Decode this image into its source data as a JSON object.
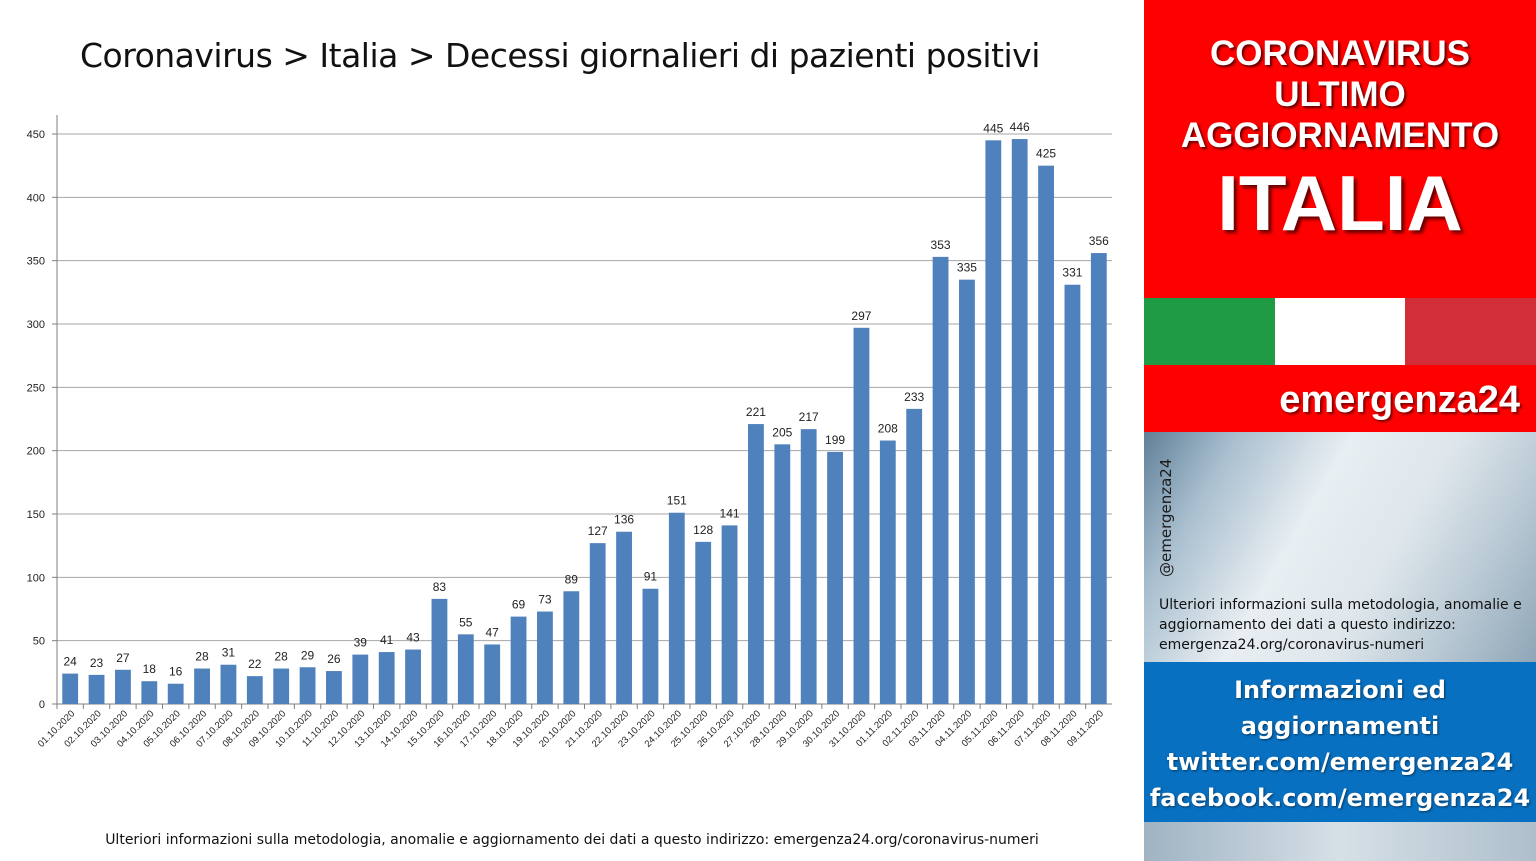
{
  "title": "Coronavirus > Italia > Decessi giornalieri di pazienti positivi",
  "footnote": "Ulteriori informazioni sulla metodologia, anomalie e aggiornamento dei dati a questo indirizzo: emergenza24.org/coronavirus-numeri",
  "panel": {
    "header_lines": [
      "CORONAVIRUS",
      "ULTIMO",
      "AGGIORNAMENTO"
    ],
    "country": "ITALIA",
    "brand": "emergenza24",
    "handle": "@emergenza24",
    "note": "Ulteriori informazioni sulla metodologia, anomalie e aggiornamento dei dati a questo indirizzo: emergenza24.org/coronavirus-numeri",
    "info_lines": [
      "Informazioni ed",
      "aggiornamenti",
      "twitter.com/emergenza24",
      "facebook.com/emergenza24"
    ],
    "colors": {
      "red": "#fe0000",
      "blue": "#0870c1",
      "flag_green": "#1f9a45",
      "flag_white": "#ffffff",
      "flag_red": "#d22e38"
    }
  },
  "chart_data": {
    "type": "bar",
    "title": "Coronavirus > Italia > Decessi giornalieri di pazienti positivi",
    "xlabel": "",
    "ylabel": "",
    "ylim": [
      0,
      450
    ],
    "yticks": [
      0,
      50,
      100,
      150,
      200,
      250,
      300,
      350,
      400,
      450
    ],
    "grid": true,
    "bar_color": "#4f81bd",
    "categories": [
      "01.10.2020",
      "02.10.2020",
      "03.10.2020",
      "04.10.2020",
      "05.10.2020",
      "06.10.2020",
      "07.10.2020",
      "08.10.2020",
      "09.10.2020",
      "10.10.2020",
      "11.10.2020",
      "12.10.2020",
      "13.10.2020",
      "14.10.2020",
      "15.10.2020",
      "16.10.2020",
      "17.10.2020",
      "18.10.2020",
      "19.10.2020",
      "20.10.2020",
      "21.10.2020",
      "22.10.2020",
      "23.10.2020",
      "24.10.2020",
      "25.10.2020",
      "26.10.2020",
      "27.10.2020",
      "28.10.2020",
      "29.10.2020",
      "30.10.2020",
      "31.10.2020",
      "01.11.2020",
      "02.11.2020",
      "03.11.2020",
      "04.11.2020",
      "05.11.2020",
      "06.11.2020",
      "07.11.2020",
      "08.11.2020",
      "09.11.2020"
    ],
    "values": [
      24,
      23,
      27,
      18,
      16,
      28,
      31,
      22,
      28,
      29,
      26,
      39,
      41,
      43,
      83,
      55,
      47,
      69,
      73,
      89,
      127,
      136,
      91,
      151,
      128,
      141,
      221,
      205,
      217,
      199,
      297,
      208,
      233,
      353,
      335,
      445,
      446,
      425,
      331,
      356
    ]
  }
}
